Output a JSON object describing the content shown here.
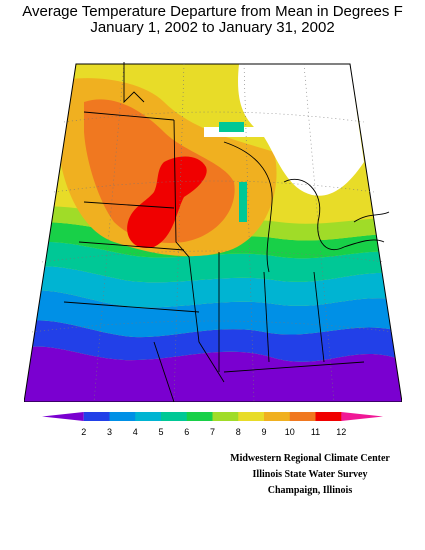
{
  "title": {
    "line1": "Average Temperature Departure from Mean in Degrees F",
    "line2": "January 1, 2002 to January 31, 2002"
  },
  "legend": {
    "ticks": [
      "2",
      "3",
      "4",
      "5",
      "6",
      "7",
      "8",
      "9",
      "10",
      "11",
      "12"
    ],
    "colors": [
      "#7a00d0",
      "#2240e8",
      "#0090e6",
      "#00b4d2",
      "#00c896",
      "#18d048",
      "#a0dc28",
      "#e8dc28",
      "#f0b020",
      "#f07820",
      "#f00000",
      "#f01896"
    ]
  },
  "credits": {
    "line1": "Midwestern Regional Climate Center",
    "line2": "Illinois State Water Survey",
    "line3": "Champaign, Illinois"
  }
}
